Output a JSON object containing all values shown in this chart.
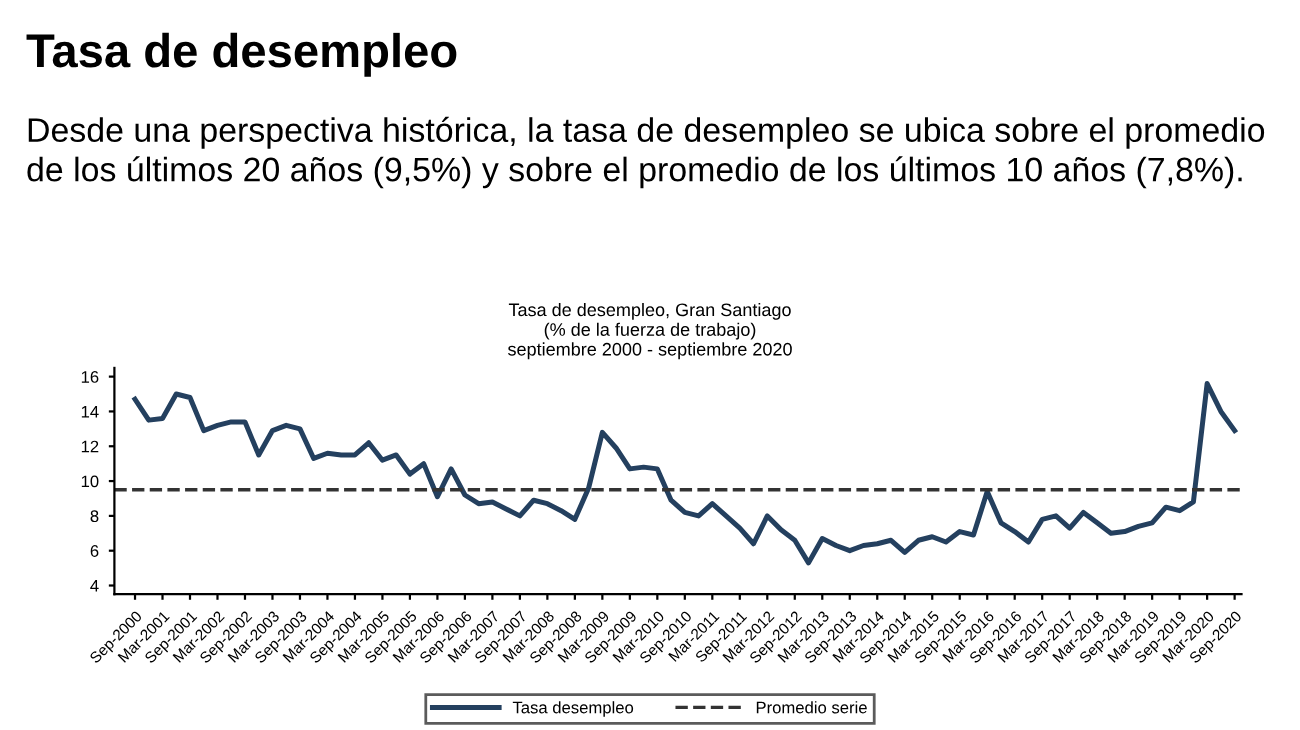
{
  "chart_data": {
    "type": "line",
    "title": "Tasa de desempleo",
    "subtitle": "Desde una perspectiva histórica, la tasa de desempleo se ubica sobre el promedio de los últimos 20 años (9,5%) y sobre el promedio de los últimos 10 años (7,8%).",
    "annotations": [
      "Tasa de desempleo, Gran Santiago",
      "(% de la fuerza de trabajo)",
      "septiembre 2000 - septiembre 2020"
    ],
    "categories": [
      "Sep-2000",
      null,
      "Mar-2001",
      null,
      "Sep-2001",
      null,
      "Mar-2002",
      null,
      "Sep-2002",
      null,
      "Mar-2003",
      null,
      "Sep-2003",
      null,
      "Mar-2004",
      null,
      "Sep-2004",
      null,
      "Mar-2005",
      null,
      "Sep-2005",
      null,
      "Mar-2006",
      null,
      "Sep-2006",
      null,
      "Mar-2007",
      null,
      "Sep-2007",
      null,
      "Mar-2008",
      null,
      "Sep-2008",
      null,
      "Mar-2009",
      null,
      "Sep-2009",
      null,
      "Mar-2010",
      null,
      "Sep-2010",
      null,
      "Mar-2011",
      null,
      "Sep-2011",
      null,
      "Mar-2012",
      null,
      "Sep-2012",
      null,
      "Mar-2013",
      null,
      "Sep-2013",
      null,
      "Mar-2014",
      null,
      "Sep-2014",
      null,
      "Mar-2015",
      null,
      "Sep-2015",
      null,
      "Mar-2016",
      null,
      "Sep-2016",
      null,
      "Mar-2017",
      null,
      "Sep-2017",
      null,
      "Mar-2018",
      null,
      "Sep-2018",
      null,
      "Mar-2019",
      null,
      "Sep-2019",
      null,
      "Mar-2020",
      null,
      "Sep-2020"
    ],
    "series": [
      {
        "name": "Tasa desempleo",
        "color": "#24405f",
        "values": [
          14.7,
          13.5,
          13.6,
          15.0,
          14.8,
          12.9,
          13.2,
          13.4,
          13.4,
          11.5,
          12.9,
          13.2,
          13.0,
          11.3,
          11.6,
          11.5,
          11.5,
          12.2,
          11.2,
          11.5,
          10.4,
          11.0,
          9.1,
          10.7,
          9.2,
          8.7,
          8.8,
          8.4,
          8.0,
          8.9,
          8.7,
          8.3,
          7.8,
          9.6,
          12.8,
          11.9,
          10.7,
          10.8,
          10.7,
          8.9,
          8.2,
          8.0,
          8.7,
          8.0,
          7.3,
          6.4,
          8.0,
          7.2,
          6.6,
          5.3,
          6.7,
          6.3,
          6.0,
          6.3,
          6.4,
          6.6,
          5.9,
          6.6,
          6.8,
          6.5,
          7.1,
          6.9,
          9.4,
          7.6,
          7.1,
          6.5,
          7.8,
          8.0,
          7.3,
          8.2,
          7.6,
          7.0,
          7.1,
          7.4,
          7.6,
          8.5,
          8.3,
          8.8,
          15.6,
          14.0,
          12.9
        ]
      }
    ],
    "ref_lines": [
      {
        "axis": "y",
        "value": 9.5,
        "label": "Promedio serie",
        "color": "#333333",
        "line_style": "dashed"
      }
    ],
    "ylim": [
      3.5,
      16.5
    ],
    "yticks": [
      4,
      6,
      8,
      10,
      12,
      14,
      16
    ],
    "grid": false,
    "legend": "bottom",
    "marker": "none",
    "line_style": "solid"
  }
}
